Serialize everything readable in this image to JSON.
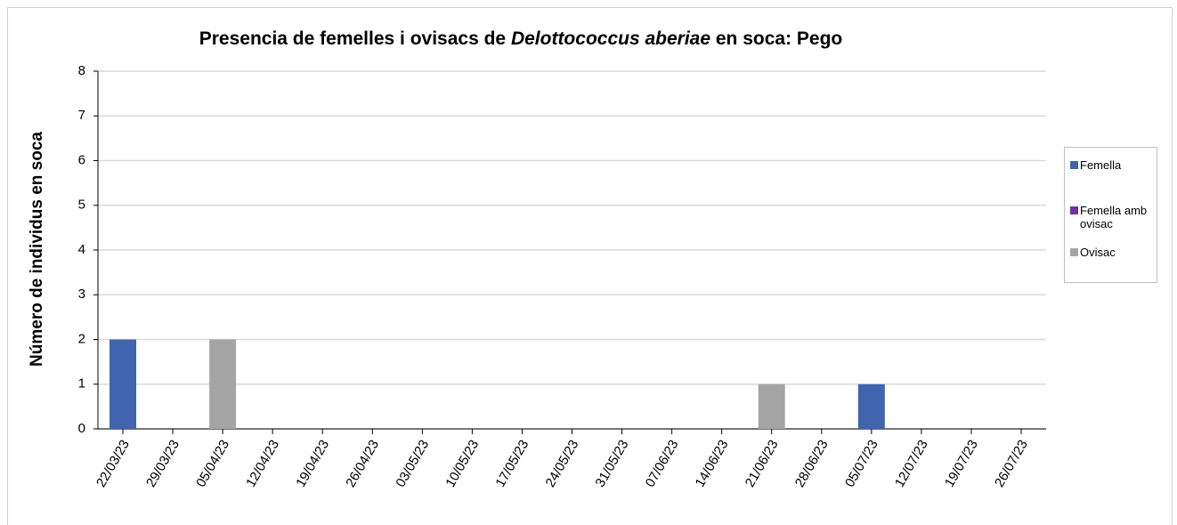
{
  "chart_data": {
    "type": "bar",
    "title": [
      "Presencia de femelles i ovisacs de ",
      "Delottococcus aberiae",
      " en soca: Pego"
    ],
    "y_label": "Número de individus en soca",
    "categories": [
      "22/03/23",
      "29/03/23",
      "05/04/23",
      "12/04/23",
      "19/04/23",
      "26/04/23",
      "03/05/23",
      "10/05/23",
      "17/05/23",
      "24/05/23",
      "31/05/23",
      "07/06/23",
      "14/06/23",
      "21/06/23",
      "28/06/23",
      "05/07/23",
      "12/07/23",
      "19/07/23",
      "26/07/23"
    ],
    "series": [
      {
        "name": "Femella",
        "color": "#4064ad",
        "values": [
          2,
          0,
          0,
          0,
          0,
          0,
          0,
          0,
          0,
          0,
          0,
          0,
          0,
          0,
          0,
          1,
          0,
          0,
          0
        ]
      },
      {
        "name": "Femella amb ovisac",
        "color": "#7030a0",
        "values": [
          0,
          0,
          0,
          0,
          0,
          0,
          0,
          0,
          0,
          0,
          0,
          0,
          0,
          0,
          0,
          0,
          0,
          0,
          0
        ]
      },
      {
        "name": "Ovisac",
        "color": "#a5a5a5",
        "values": [
          0,
          0,
          2,
          0,
          0,
          0,
          0,
          0,
          0,
          0,
          0,
          0,
          0,
          1,
          0,
          0,
          0,
          0,
          0
        ]
      }
    ],
    "ylim": [
      0,
      8
    ],
    "yticks": [
      0,
      1,
      2,
      3,
      4,
      5,
      6,
      7,
      8
    ],
    "grid": true,
    "legend": "right"
  }
}
